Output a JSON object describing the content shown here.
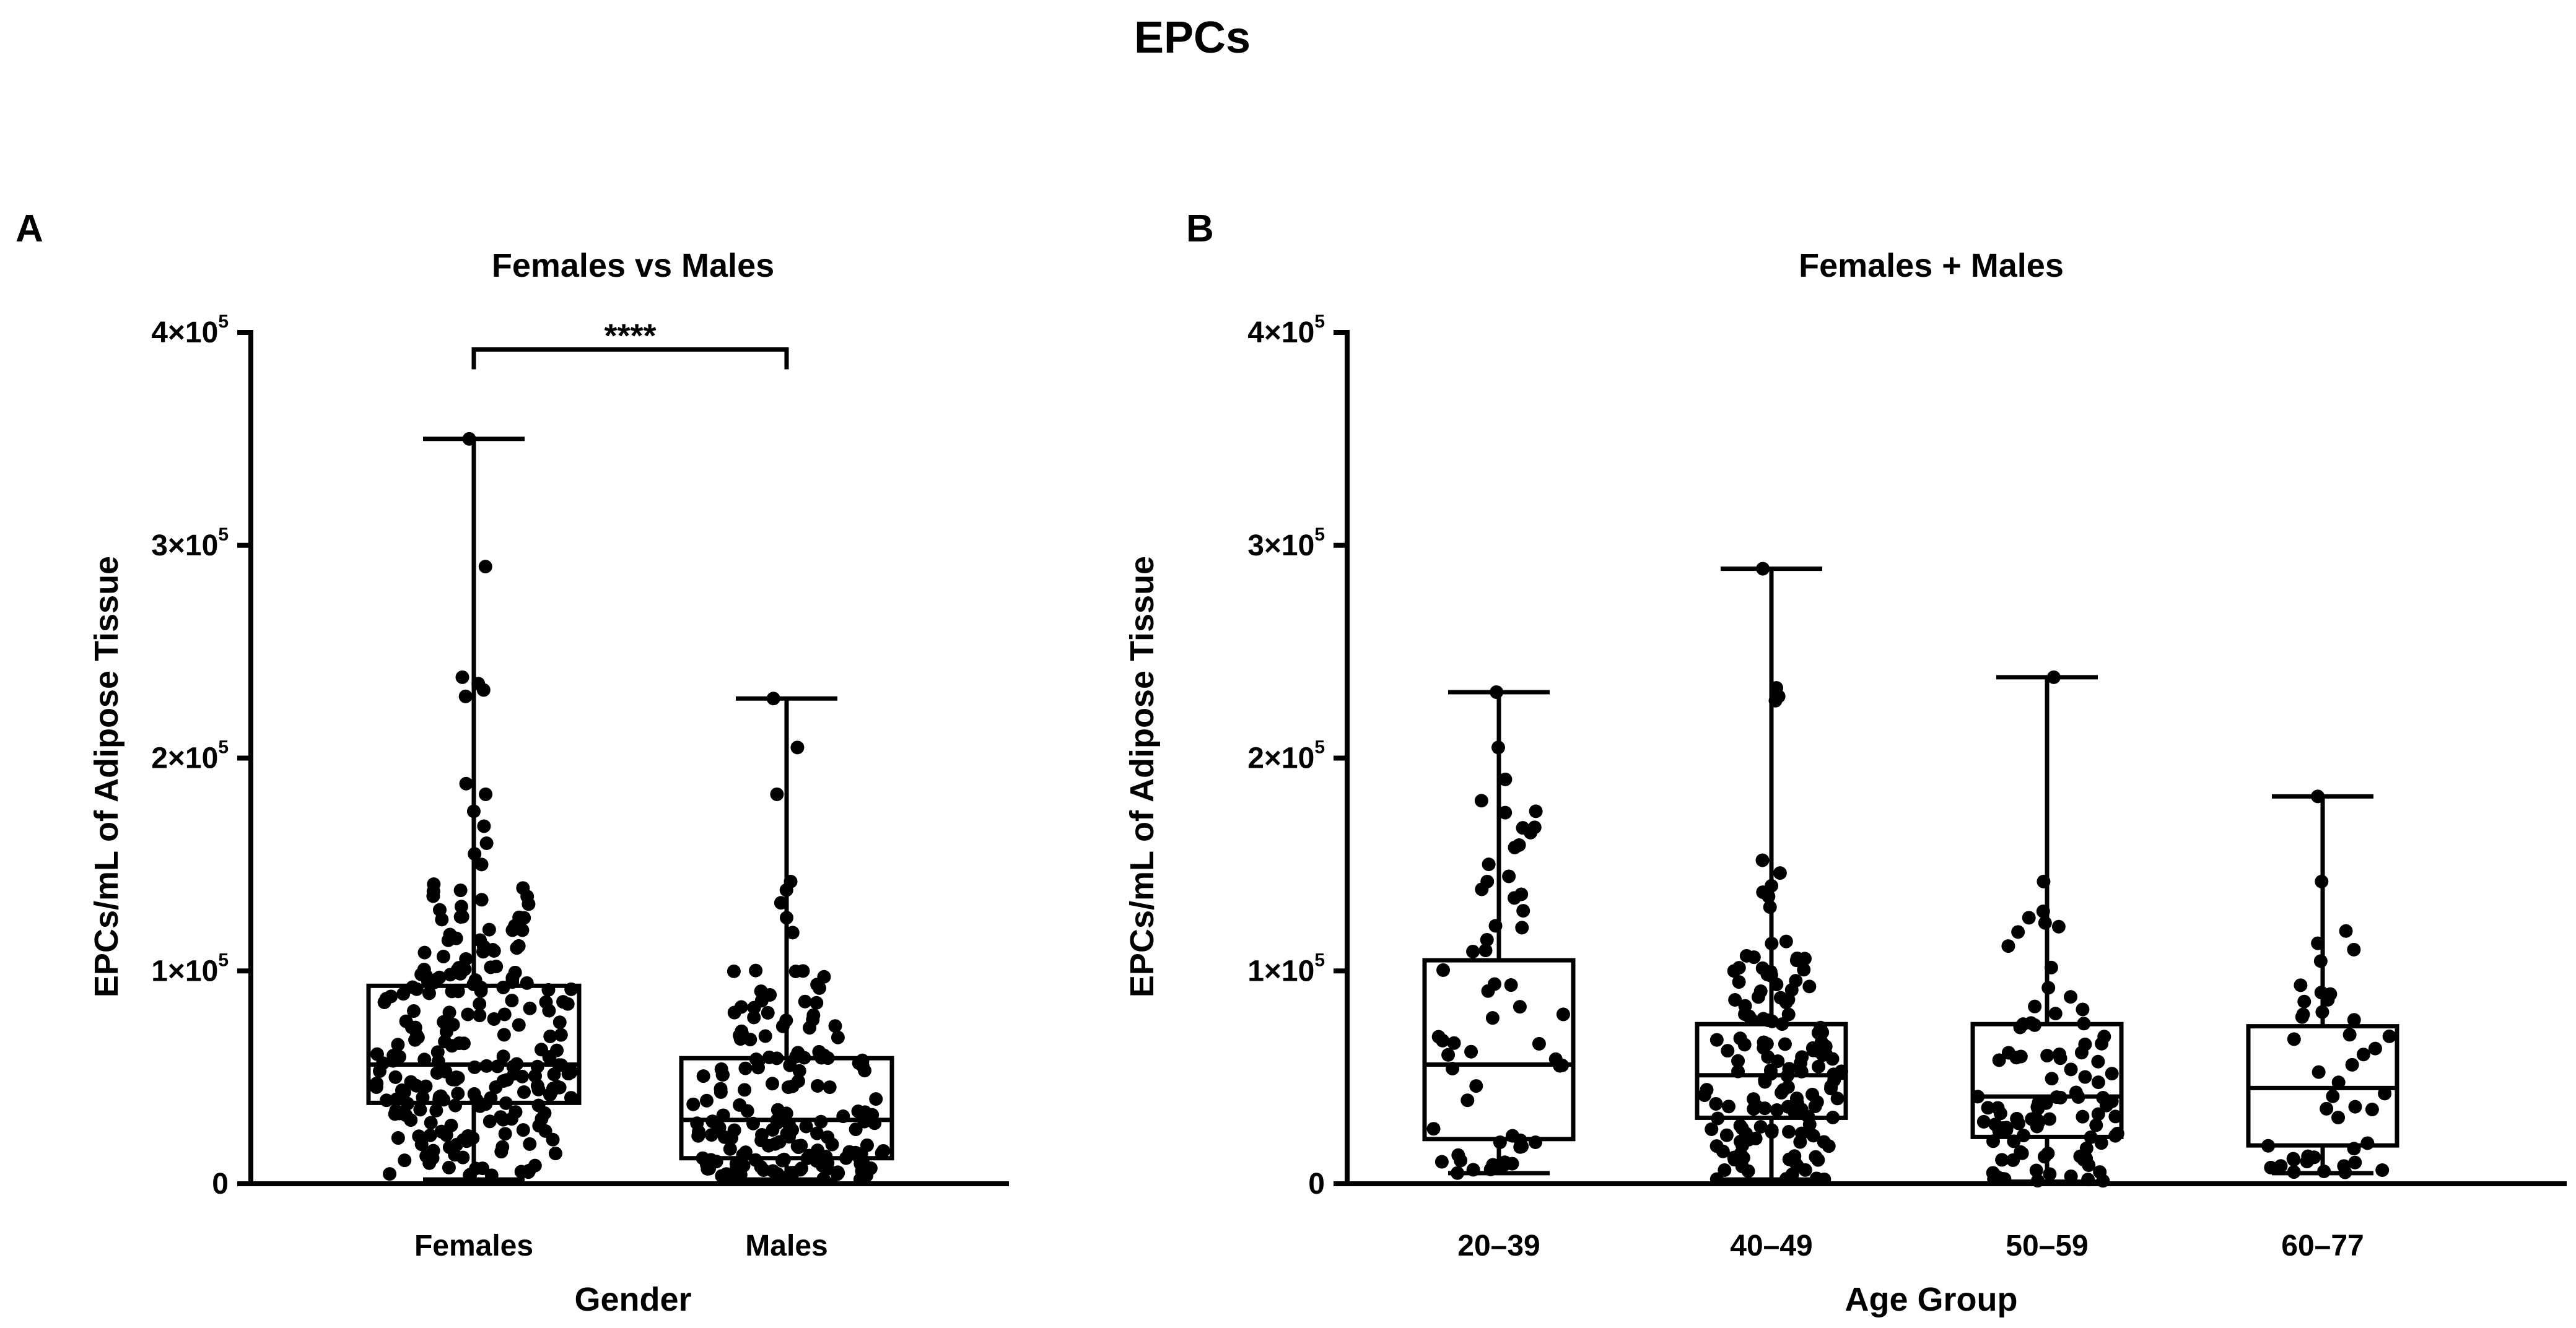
{
  "title": "EPCs",
  "chart_data": [
    {
      "type": "box-dot",
      "panel_label": "A",
      "title": "Females vs Males",
      "xlabel": "Gender",
      "ylabel": "EPCs/mL of Adipose Tissue",
      "ylim": [
        0,
        400000
      ],
      "yticks": [
        {
          "value": 0,
          "mantissa": "0",
          "exponent": ""
        },
        {
          "value": 100000,
          "mantissa": "1×10",
          "exponent": "5"
        },
        {
          "value": 200000,
          "mantissa": "2×10",
          "exponent": "5"
        },
        {
          "value": 300000,
          "mantissa": "3×10",
          "exponent": "5"
        },
        {
          "value": 400000,
          "mantissa": "4×10",
          "exponent": "5"
        }
      ],
      "categories": [
        "Females",
        "Males"
      ],
      "boxes": [
        {
          "category": "Females",
          "min": 2000,
          "q1": 38000,
          "median": 56000,
          "q3": 93000,
          "max": 350000,
          "n": 240,
          "outliers_high": [
            350000,
            290000,
            238000,
            235000,
            232000,
            229000,
            188000,
            183000,
            175000,
            168000,
            160000,
            155000,
            150000
          ]
        },
        {
          "category": "Males",
          "min": 2000,
          "q1": 12000,
          "median": 30000,
          "q3": 59000,
          "max": 228000,
          "n": 180,
          "outliers_high": [
            228000,
            205000,
            183000,
            142000,
            138000,
            132000,
            125000,
            118000
          ]
        }
      ],
      "significance": {
        "from": "Females",
        "to": "Males",
        "label": "****",
        "y": 392000
      }
    },
    {
      "type": "box-dot",
      "panel_label": "B",
      "title": "Females + Males",
      "xlabel": "Age Group",
      "ylabel": "EPCs/mL of Adipose Tissue",
      "ylim": [
        0,
        400000
      ],
      "yticks": [
        {
          "value": 0,
          "mantissa": "0",
          "exponent": ""
        },
        {
          "value": 100000,
          "mantissa": "1×10",
          "exponent": "5"
        },
        {
          "value": 200000,
          "mantissa": "2×10",
          "exponent": "5"
        },
        {
          "value": 300000,
          "mantissa": "3×10",
          "exponent": "5"
        },
        {
          "value": 400000,
          "mantissa": "4×10",
          "exponent": "5"
        }
      ],
      "categories": [
        "20–39",
        "40–49",
        "50–59",
        "60–77"
      ],
      "boxes": [
        {
          "category": "20–39",
          "min": 5000,
          "q1": 21000,
          "median": 56000,
          "q3": 105000,
          "max": 231000,
          "n": 60,
          "outliers_high": [
            231000,
            205000,
            190000,
            180000,
            165000,
            158000,
            142000,
            136000
          ]
        },
        {
          "category": "40–49",
          "min": 2000,
          "q1": 31000,
          "median": 51000,
          "q3": 75000,
          "max": 289000,
          "n": 150,
          "outliers_high": [
            289000,
            233000,
            229000,
            227000,
            152000,
            146000,
            140000,
            137000,
            135000,
            130000
          ]
        },
        {
          "category": "50–59",
          "min": 1000,
          "q1": 22000,
          "median": 41000,
          "q3": 75000,
          "max": 238000,
          "n": 100,
          "outliers_high": [
            238000,
            142000,
            128000,
            125000
          ]
        },
        {
          "category": "60–77",
          "min": 5000,
          "q1": 18000,
          "median": 45000,
          "q3": 74000,
          "max": 182000,
          "n": 45,
          "outliers_high": [
            182000,
            142000,
            113000,
            110000
          ]
        }
      ]
    }
  ]
}
